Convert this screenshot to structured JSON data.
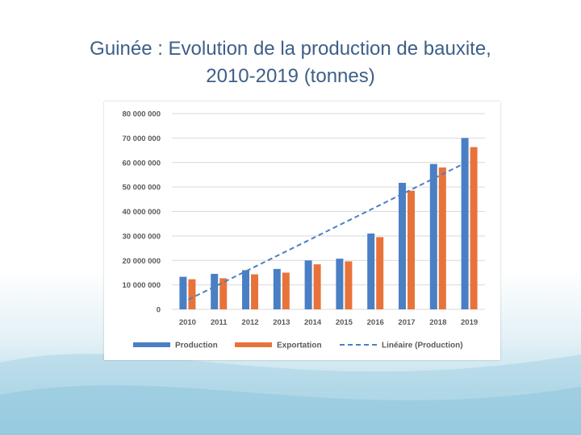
{
  "slide": {
    "title_line1": "Guinée : Evolution de la production de bauxite,",
    "title_line2": "2010-2019 (tonnes)"
  },
  "colors": {
    "production": "#4a7fc4",
    "exportation": "#e8733a",
    "trend": "#4a7fc4",
    "grid": "#d9d9d9",
    "title": "#3e5f88"
  },
  "chart_data": {
    "type": "bar",
    "title": "",
    "xlabel": "",
    "ylabel": "",
    "categories": [
      "2010",
      "2011",
      "2012",
      "2013",
      "2014",
      "2015",
      "2016",
      "2017",
      "2018",
      "2019"
    ],
    "series": [
      {
        "name": "Production",
        "values": [
          13300000,
          14500000,
          16000000,
          16500000,
          20000000,
          20700000,
          31000000,
          51700000,
          59400000,
          70000000
        ]
      },
      {
        "name": "Exportation",
        "values": [
          12300000,
          12700000,
          14300000,
          15000000,
          18400000,
          19600000,
          29500000,
          48500000,
          58000000,
          66300000
        ]
      }
    ],
    "trendline": {
      "name": "Linéaire (Production)",
      "start": 2500000,
      "end": 60000000
    },
    "ylim": [
      0,
      80000000
    ],
    "yticks": [
      {
        "value": 0,
        "label": "0"
      },
      {
        "value": 10000000,
        "label": "10 000 000"
      },
      {
        "value": 20000000,
        "label": "20 000 000"
      },
      {
        "value": 30000000,
        "label": "30 000 000"
      },
      {
        "value": 40000000,
        "label": "40 000 000"
      },
      {
        "value": 50000000,
        "label": "50 000 000"
      },
      {
        "value": 60000000,
        "label": "60 000 000"
      },
      {
        "value": 70000000,
        "label": "70 000 000"
      },
      {
        "value": 80000000,
        "label": "80 000 000"
      }
    ],
    "grid": true,
    "legend": "bottom"
  }
}
